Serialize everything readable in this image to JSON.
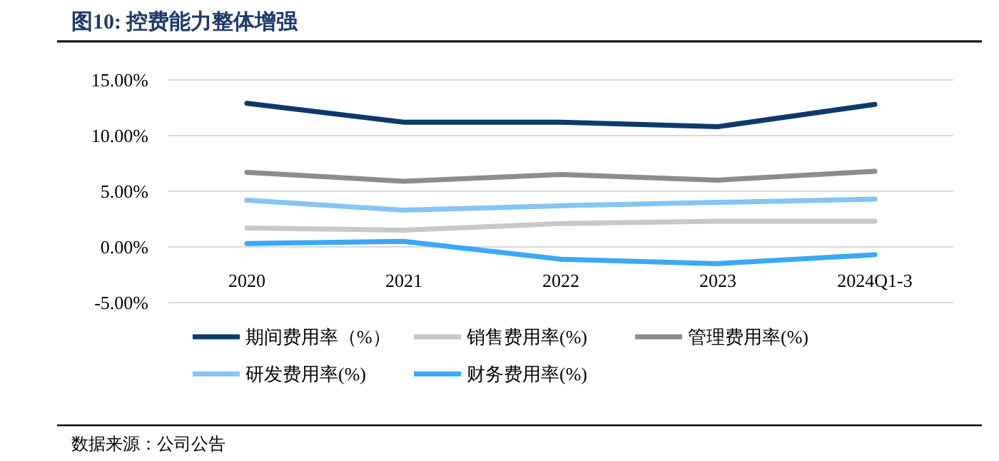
{
  "chart_data": {
    "type": "line",
    "title": "图10:  控费能力整体增强",
    "categories": [
      "2020",
      "2021",
      "2022",
      "2023",
      "2024Q1-3"
    ],
    "series": [
      {
        "name": "期间费用率（%）",
        "color": "#0b3a6b",
        "values": [
          12.9,
          11.2,
          11.2,
          10.8,
          12.8
        ]
      },
      {
        "name": "销售费用率(%)",
        "color": "#c8c8c8",
        "values": [
          1.7,
          1.5,
          2.1,
          2.3,
          2.3
        ]
      },
      {
        "name": "管理费用率(%)",
        "color": "#8c8c8c",
        "values": [
          6.7,
          5.9,
          6.5,
          6.0,
          6.8
        ]
      },
      {
        "name": "研发费用率(%)",
        "color": "#85c4f5",
        "values": [
          4.2,
          3.3,
          3.7,
          4.0,
          4.3
        ]
      },
      {
        "name": "财务费用率(%)",
        "color": "#3ba8f5",
        "values": [
          0.3,
          0.5,
          -1.1,
          -1.5,
          -0.7
        ]
      }
    ],
    "ylim": [
      -5,
      15
    ],
    "yticks": [
      {
        "value": -5,
        "label": "-5.00%"
      },
      {
        "value": 0,
        "label": "0.00%"
      },
      {
        "value": 5,
        "label": "5.00%"
      },
      {
        "value": 10,
        "label": "10.00%"
      },
      {
        "value": 15,
        "label": "15.00%"
      }
    ],
    "grid": "y",
    "legend": "bottom",
    "marker": "none",
    "line_style": "solid",
    "annotations": [
      "数据来源：公司公告"
    ]
  }
}
